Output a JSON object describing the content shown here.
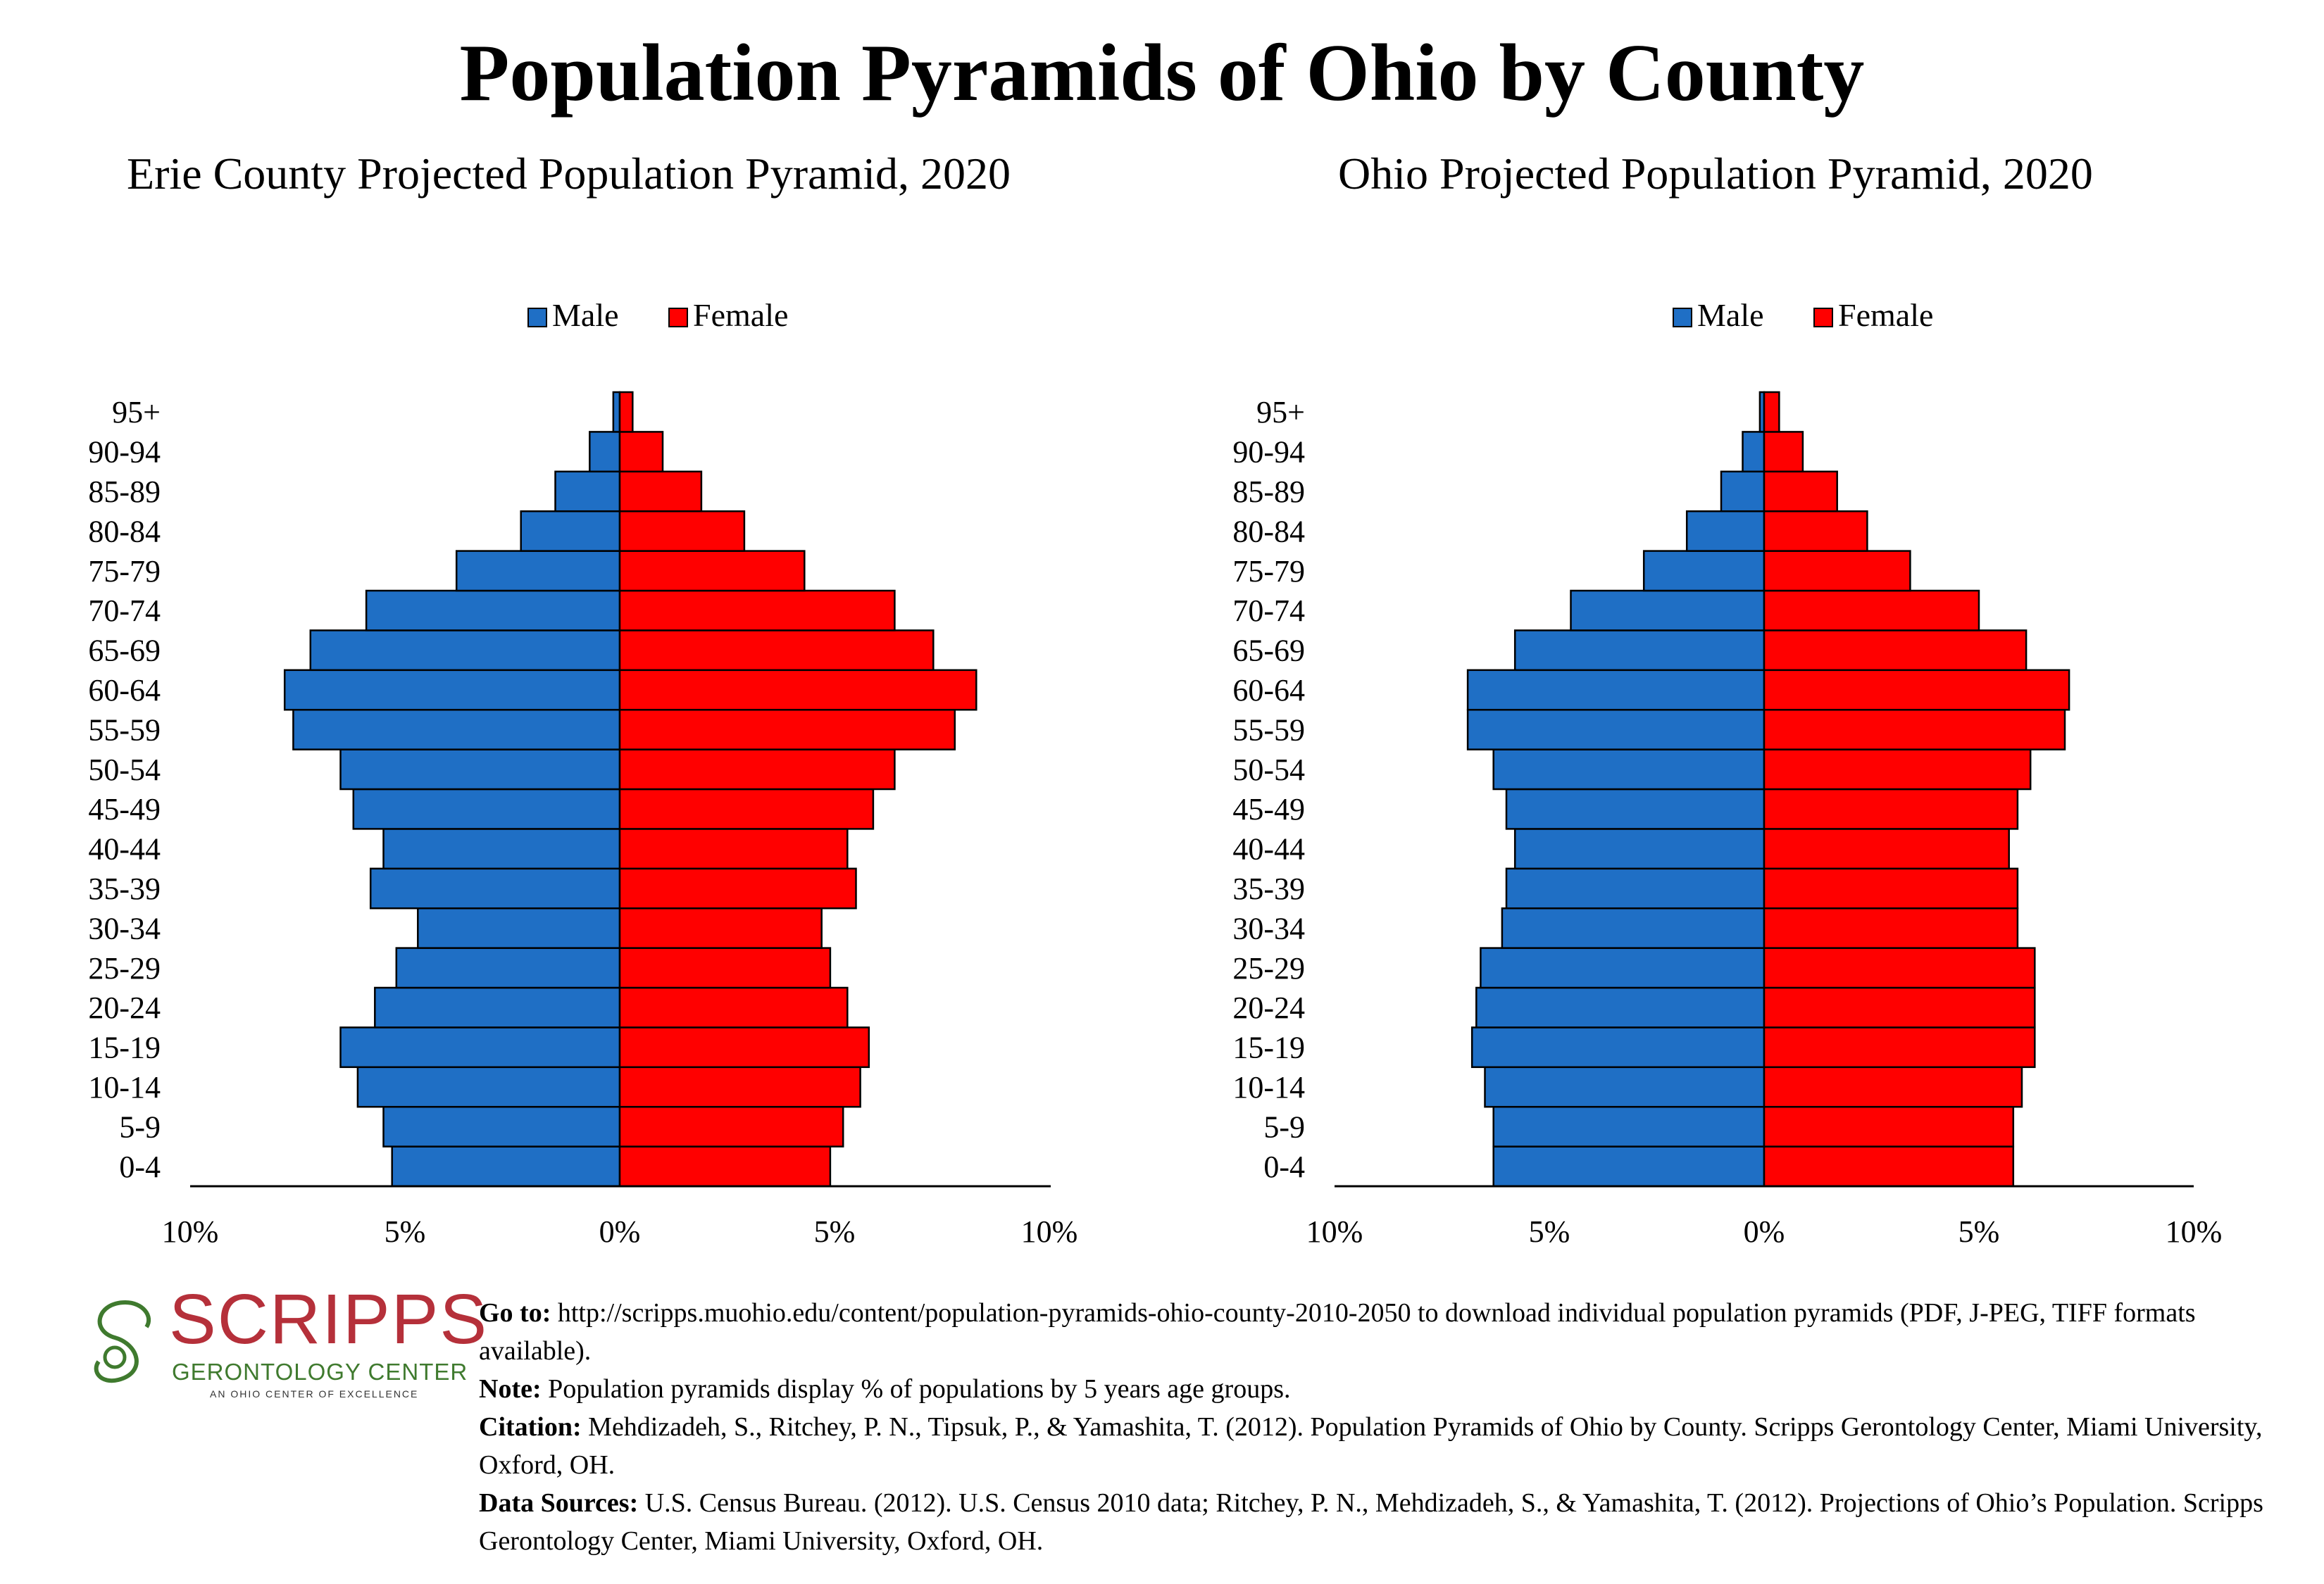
{
  "title": "Population Pyramids of Ohio by County",
  "colors": {
    "male": "#1f6fc5",
    "female": "#ff0000",
    "logo_red": "#b5303a",
    "logo_green": "#3f7a2e"
  },
  "chart_data": [
    {
      "type": "bar",
      "title": "Erie County Projected Population Pyramid, 2020",
      "categories": [
        "0-4",
        "5-9",
        "10-14",
        "15-19",
        "20-24",
        "25-29",
        "30-34",
        "35-39",
        "40-44",
        "45-49",
        "50-54",
        "55-59",
        "60-64",
        "65-69",
        "70-74",
        "75-79",
        "80-84",
        "85-89",
        "90-94",
        "95+"
      ],
      "series": [
        {
          "name": "Male",
          "values": [
            5.3,
            5.5,
            6.1,
            6.5,
            5.7,
            5.2,
            4.7,
            5.8,
            5.5,
            6.2,
            6.5,
            7.6,
            7.8,
            7.2,
            5.9,
            3.8,
            2.3,
            1.5,
            0.7,
            0.15
          ]
        },
        {
          "name": "Female",
          "values": [
            4.9,
            5.2,
            5.6,
            5.8,
            5.3,
            4.9,
            4.7,
            5.5,
            5.3,
            5.9,
            6.4,
            7.8,
            8.3,
            7.3,
            6.4,
            4.3,
            2.9,
            1.9,
            1.0,
            0.3
          ]
        }
      ],
      "xlim": [
        -10,
        10
      ],
      "xticks": [
        "10%",
        "5%",
        "0%",
        "5%",
        "10%"
      ],
      "legend": "top-center"
    },
    {
      "type": "bar",
      "title": "Ohio Projected Population Pyramid, 2020",
      "categories": [
        "0-4",
        "5-9",
        "10-14",
        "15-19",
        "20-24",
        "25-29",
        "30-34",
        "35-39",
        "40-44",
        "45-49",
        "50-54",
        "55-59",
        "60-64",
        "65-69",
        "70-74",
        "75-79",
        "80-84",
        "85-89",
        "90-94",
        "95+"
      ],
      "series": [
        {
          "name": "Male",
          "values": [
            6.3,
            6.3,
            6.5,
            6.8,
            6.7,
            6.6,
            6.1,
            6.0,
            5.8,
            6.0,
            6.3,
            6.9,
            6.9,
            5.8,
            4.5,
            2.8,
            1.8,
            1.0,
            0.5,
            0.1
          ]
        },
        {
          "name": "Female",
          "values": [
            5.8,
            5.8,
            6.0,
            6.3,
            6.3,
            6.3,
            5.9,
            5.9,
            5.7,
            5.9,
            6.2,
            7.0,
            7.1,
            6.1,
            5.0,
            3.4,
            2.4,
            1.7,
            0.9,
            0.35
          ]
        }
      ],
      "xlim": [
        -10,
        10
      ],
      "xticks": [
        "10%",
        "5%",
        "0%",
        "5%",
        "10%"
      ],
      "legend": "top-center"
    }
  ],
  "logo": {
    "word": "SCRIPPS",
    "subtitle": "GERONTOLOGY CENTER",
    "tagline": "AN OHIO CENTER OF EXCELLENCE"
  },
  "footer": {
    "goto_label": "Go to:",
    "goto_text": " http://scripps.muohio.edu/content/population-pyramids-ohio-county-2010-2050 to download individual population pyramids (PDF, J-PEG, TIFF formats available).",
    "note_label": "Note:",
    "note_text": " Population pyramids display % of populations by 5 years age groups.",
    "citation_label": "Citation:",
    "citation_text": " Mehdizadeh, S., Ritchey, P. N., Tipsuk, P., & Yamashita, T. (2012). Population Pyramids of Ohio by County. Scripps Gerontology Center, Miami University, Oxford, OH.",
    "sources_label": "Data Sources:",
    "sources_text": " U.S. Census Bureau. (2012). U.S. Census 2010 data; Ritchey, P. N., Mehdizadeh, S., & Yamashita, T. (2012). Projections of Ohio’s Population. Scripps Gerontology Center, Miami University, Oxford, OH."
  }
}
